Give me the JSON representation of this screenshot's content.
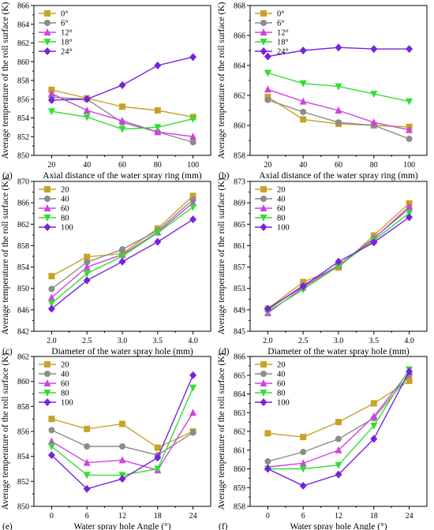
{
  "chart_data": [
    {
      "type": "line",
      "panel_label": "(a)",
      "xlabel": "Axial distance of the water spray ring (mm)",
      "ylabel": "Average temperature of the roll surface (K)",
      "x": [
        20,
        40,
        60,
        80,
        100
      ],
      "xticks": [
        20,
        40,
        60,
        80,
        100
      ],
      "xlim": [
        10,
        110
      ],
      "ylim": [
        850,
        866
      ],
      "yticks": [
        850,
        852,
        854,
        856,
        858,
        860,
        862,
        864,
        866
      ],
      "legend": "top-left",
      "series": [
        {
          "name": "0°",
          "color": "#c9a227",
          "marker": "square",
          "values": [
            857.0,
            856.1,
            855.2,
            854.8,
            854.1
          ]
        },
        {
          "name": "6°",
          "color": "#8c8c8c",
          "marker": "circle",
          "values": [
            856.2,
            856.0,
            853.5,
            852.5,
            851.4
          ]
        },
        {
          "name": "12°",
          "color": "#cc44dd",
          "marker": "triangle",
          "values": [
            856.6,
            854.8,
            853.7,
            852.5,
            852.0
          ]
        },
        {
          "name": "18°",
          "color": "#33dd33",
          "marker": "triangle-down",
          "values": [
            854.7,
            854.1,
            852.8,
            853.0,
            853.9
          ]
        },
        {
          "name": "24°",
          "color": "#7722dd",
          "marker": "diamond",
          "values": [
            855.9,
            856.0,
            857.5,
            859.6,
            860.5
          ]
        }
      ]
    },
    {
      "type": "line",
      "panel_label": "(b)",
      "xlabel": "Axial distance of the water spray ring (mm)",
      "ylabel": "Average temperature of the roll surface (K)",
      "x": [
        20,
        40,
        60,
        80,
        100
      ],
      "xticks": [
        20,
        40,
        60,
        80,
        100
      ],
      "xlim": [
        10,
        110
      ],
      "ylim": [
        858,
        868
      ],
      "yticks": [
        858,
        860,
        862,
        864,
        866,
        868
      ],
      "legend": "top-left",
      "series": [
        {
          "name": "0°",
          "color": "#c9a227",
          "marker": "square",
          "values": [
            861.9,
            860.4,
            860.1,
            860.0,
            859.9
          ]
        },
        {
          "name": "6°",
          "color": "#8c8c8c",
          "marker": "circle",
          "values": [
            861.7,
            860.9,
            860.2,
            860.0,
            859.1
          ]
        },
        {
          "name": "12°",
          "color": "#cc44dd",
          "marker": "triangle",
          "values": [
            862.4,
            861.6,
            861.0,
            860.2,
            859.7
          ]
        },
        {
          "name": "18°",
          "color": "#33dd33",
          "marker": "triangle-down",
          "values": [
            863.5,
            862.8,
            862.6,
            862.1,
            861.6
          ]
        },
        {
          "name": "24°",
          "color": "#7722dd",
          "marker": "diamond",
          "values": [
            864.6,
            865.0,
            865.2,
            865.1,
            865.1
          ]
        }
      ]
    },
    {
      "type": "line",
      "panel_label": "(c)",
      "xlabel": "Diameter of the water spray hole (mm)",
      "ylabel": "Average temperature of the roll surface (K)",
      "x": [
        2.0,
        2.5,
        3.0,
        3.5,
        4.0
      ],
      "xticks": [
        "2.0",
        "2.5",
        "3.0",
        "3.5",
        "4.0"
      ],
      "xlim": [
        1.75,
        4.25
      ],
      "ylim": [
        842,
        870
      ],
      "yticks": [
        842,
        846,
        850,
        854,
        858,
        862,
        866,
        870
      ],
      "legend": "top-left",
      "series": [
        {
          "name": "20",
          "color": "#c9a227",
          "marker": "square",
          "values": [
            852.3,
            855.9,
            856.5,
            861.2,
            867.3
          ]
        },
        {
          "name": "40",
          "color": "#8c8c8c",
          "marker": "circle",
          "values": [
            849.9,
            854.9,
            857.3,
            860.8,
            866.6
          ]
        },
        {
          "name": "60",
          "color": "#cc44dd",
          "marker": "triangle",
          "values": [
            848.3,
            854.0,
            856.3,
            860.5,
            866.0
          ]
        },
        {
          "name": "80",
          "color": "#33dd33",
          "marker": "triangle-down",
          "values": [
            847.2,
            852.8,
            856.0,
            860.4,
            865.2
          ]
        },
        {
          "name": "100",
          "color": "#7722dd",
          "marker": "diamond",
          "values": [
            846.2,
            851.5,
            855.0,
            858.7,
            862.9
          ]
        }
      ]
    },
    {
      "type": "line",
      "panel_label": "(d)",
      "xlabel": "Diameter of the water spray hole (mm)",
      "ylabel": "Average temperature of the roll surface (K)",
      "x": [
        2.0,
        2.5,
        3.0,
        3.5,
        4.0
      ],
      "xticks": [
        "2.0",
        "2.5",
        "3.0",
        "3.5",
        "4.0"
      ],
      "xlim": [
        1.75,
        4.25
      ],
      "ylim": [
        845,
        873
      ],
      "yticks": [
        845,
        849,
        853,
        857,
        861,
        865,
        869,
        873
      ],
      "legend": "top-left",
      "series": [
        {
          "name": "20",
          "color": "#c9a227",
          "marker": "square",
          "values": [
            849.2,
            854.2,
            856.9,
            862.9,
            868.9
          ]
        },
        {
          "name": "40",
          "color": "#8c8c8c",
          "marker": "circle",
          "values": [
            849.0,
            853.6,
            857.3,
            862.4,
            867.9
          ]
        },
        {
          "name": "60",
          "color": "#cc44dd",
          "marker": "triangle",
          "values": [
            848.4,
            853.2,
            857.3,
            862.3,
            868.3
          ]
        },
        {
          "name": "80",
          "color": "#33dd33",
          "marker": "triangle-down",
          "values": [
            848.7,
            852.8,
            857.2,
            862.0,
            867.1
          ]
        },
        {
          "name": "100",
          "color": "#7722dd",
          "marker": "diamond",
          "values": [
            849.2,
            853.4,
            858.0,
            861.6,
            866.3
          ]
        }
      ]
    },
    {
      "type": "line",
      "panel_label": "(e)",
      "xlabel": "Water spray hole Angle (°)",
      "ylabel": "Average temperature of the roll surface (K)",
      "x": [
        0,
        6,
        12,
        18,
        24
      ],
      "xticks": [
        0,
        6,
        12,
        18,
        24
      ],
      "xlim": [
        -3,
        27
      ],
      "ylim": [
        850,
        862
      ],
      "yticks": [
        850,
        852,
        854,
        856,
        858,
        860,
        862
      ],
      "legend": "top-left",
      "series": [
        {
          "name": "20",
          "color": "#c9a227",
          "marker": "square",
          "values": [
            857.0,
            856.2,
            856.6,
            854.7,
            856.0
          ]
        },
        {
          "name": "40",
          "color": "#8c8c8c",
          "marker": "circle",
          "values": [
            856.1,
            854.8,
            854.8,
            854.1,
            855.9
          ]
        },
        {
          "name": "60",
          "color": "#cc44dd",
          "marker": "triangle",
          "values": [
            855.2,
            853.5,
            853.7,
            852.9,
            857.5
          ]
        },
        {
          "name": "80",
          "color": "#33dd33",
          "marker": "triangle-down",
          "values": [
            854.8,
            852.5,
            852.5,
            853.0,
            859.5
          ]
        },
        {
          "name": "100",
          "color": "#7722dd",
          "marker": "diamond",
          "values": [
            854.1,
            851.4,
            852.2,
            853.9,
            860.5
          ]
        }
      ]
    },
    {
      "type": "line",
      "panel_label": "(f)",
      "xlabel": "Water spray hole Angle (°)",
      "ylabel": "Average temperature of the roll surface (K)",
      "x": [
        0,
        6,
        12,
        18,
        24
      ],
      "xticks": [
        0,
        6,
        12,
        18,
        24
      ],
      "xlim": [
        -3,
        27
      ],
      "ylim": [
        858,
        866
      ],
      "yticks": [
        858,
        859,
        860,
        861,
        862,
        863,
        864,
        865,
        866
      ],
      "legend": "top-left",
      "series": [
        {
          "name": "20",
          "color": "#c9a227",
          "marker": "square",
          "values": [
            861.9,
            861.7,
            862.5,
            863.5,
            864.7
          ]
        },
        {
          "name": "40",
          "color": "#8c8c8c",
          "marker": "circle",
          "values": [
            860.4,
            860.9,
            861.6,
            862.7,
            865.0
          ]
        },
        {
          "name": "60",
          "color": "#cc44dd",
          "marker": "triangle",
          "values": [
            860.1,
            860.3,
            861.0,
            862.8,
            865.2
          ]
        },
        {
          "name": "80",
          "color": "#33dd33",
          "marker": "triangle-down",
          "values": [
            860.0,
            860.0,
            860.2,
            862.3,
            865.3
          ]
        },
        {
          "name": "100",
          "color": "#7722dd",
          "marker": "diamond",
          "values": [
            860.0,
            859.1,
            859.7,
            861.6,
            865.2
          ]
        }
      ]
    }
  ]
}
